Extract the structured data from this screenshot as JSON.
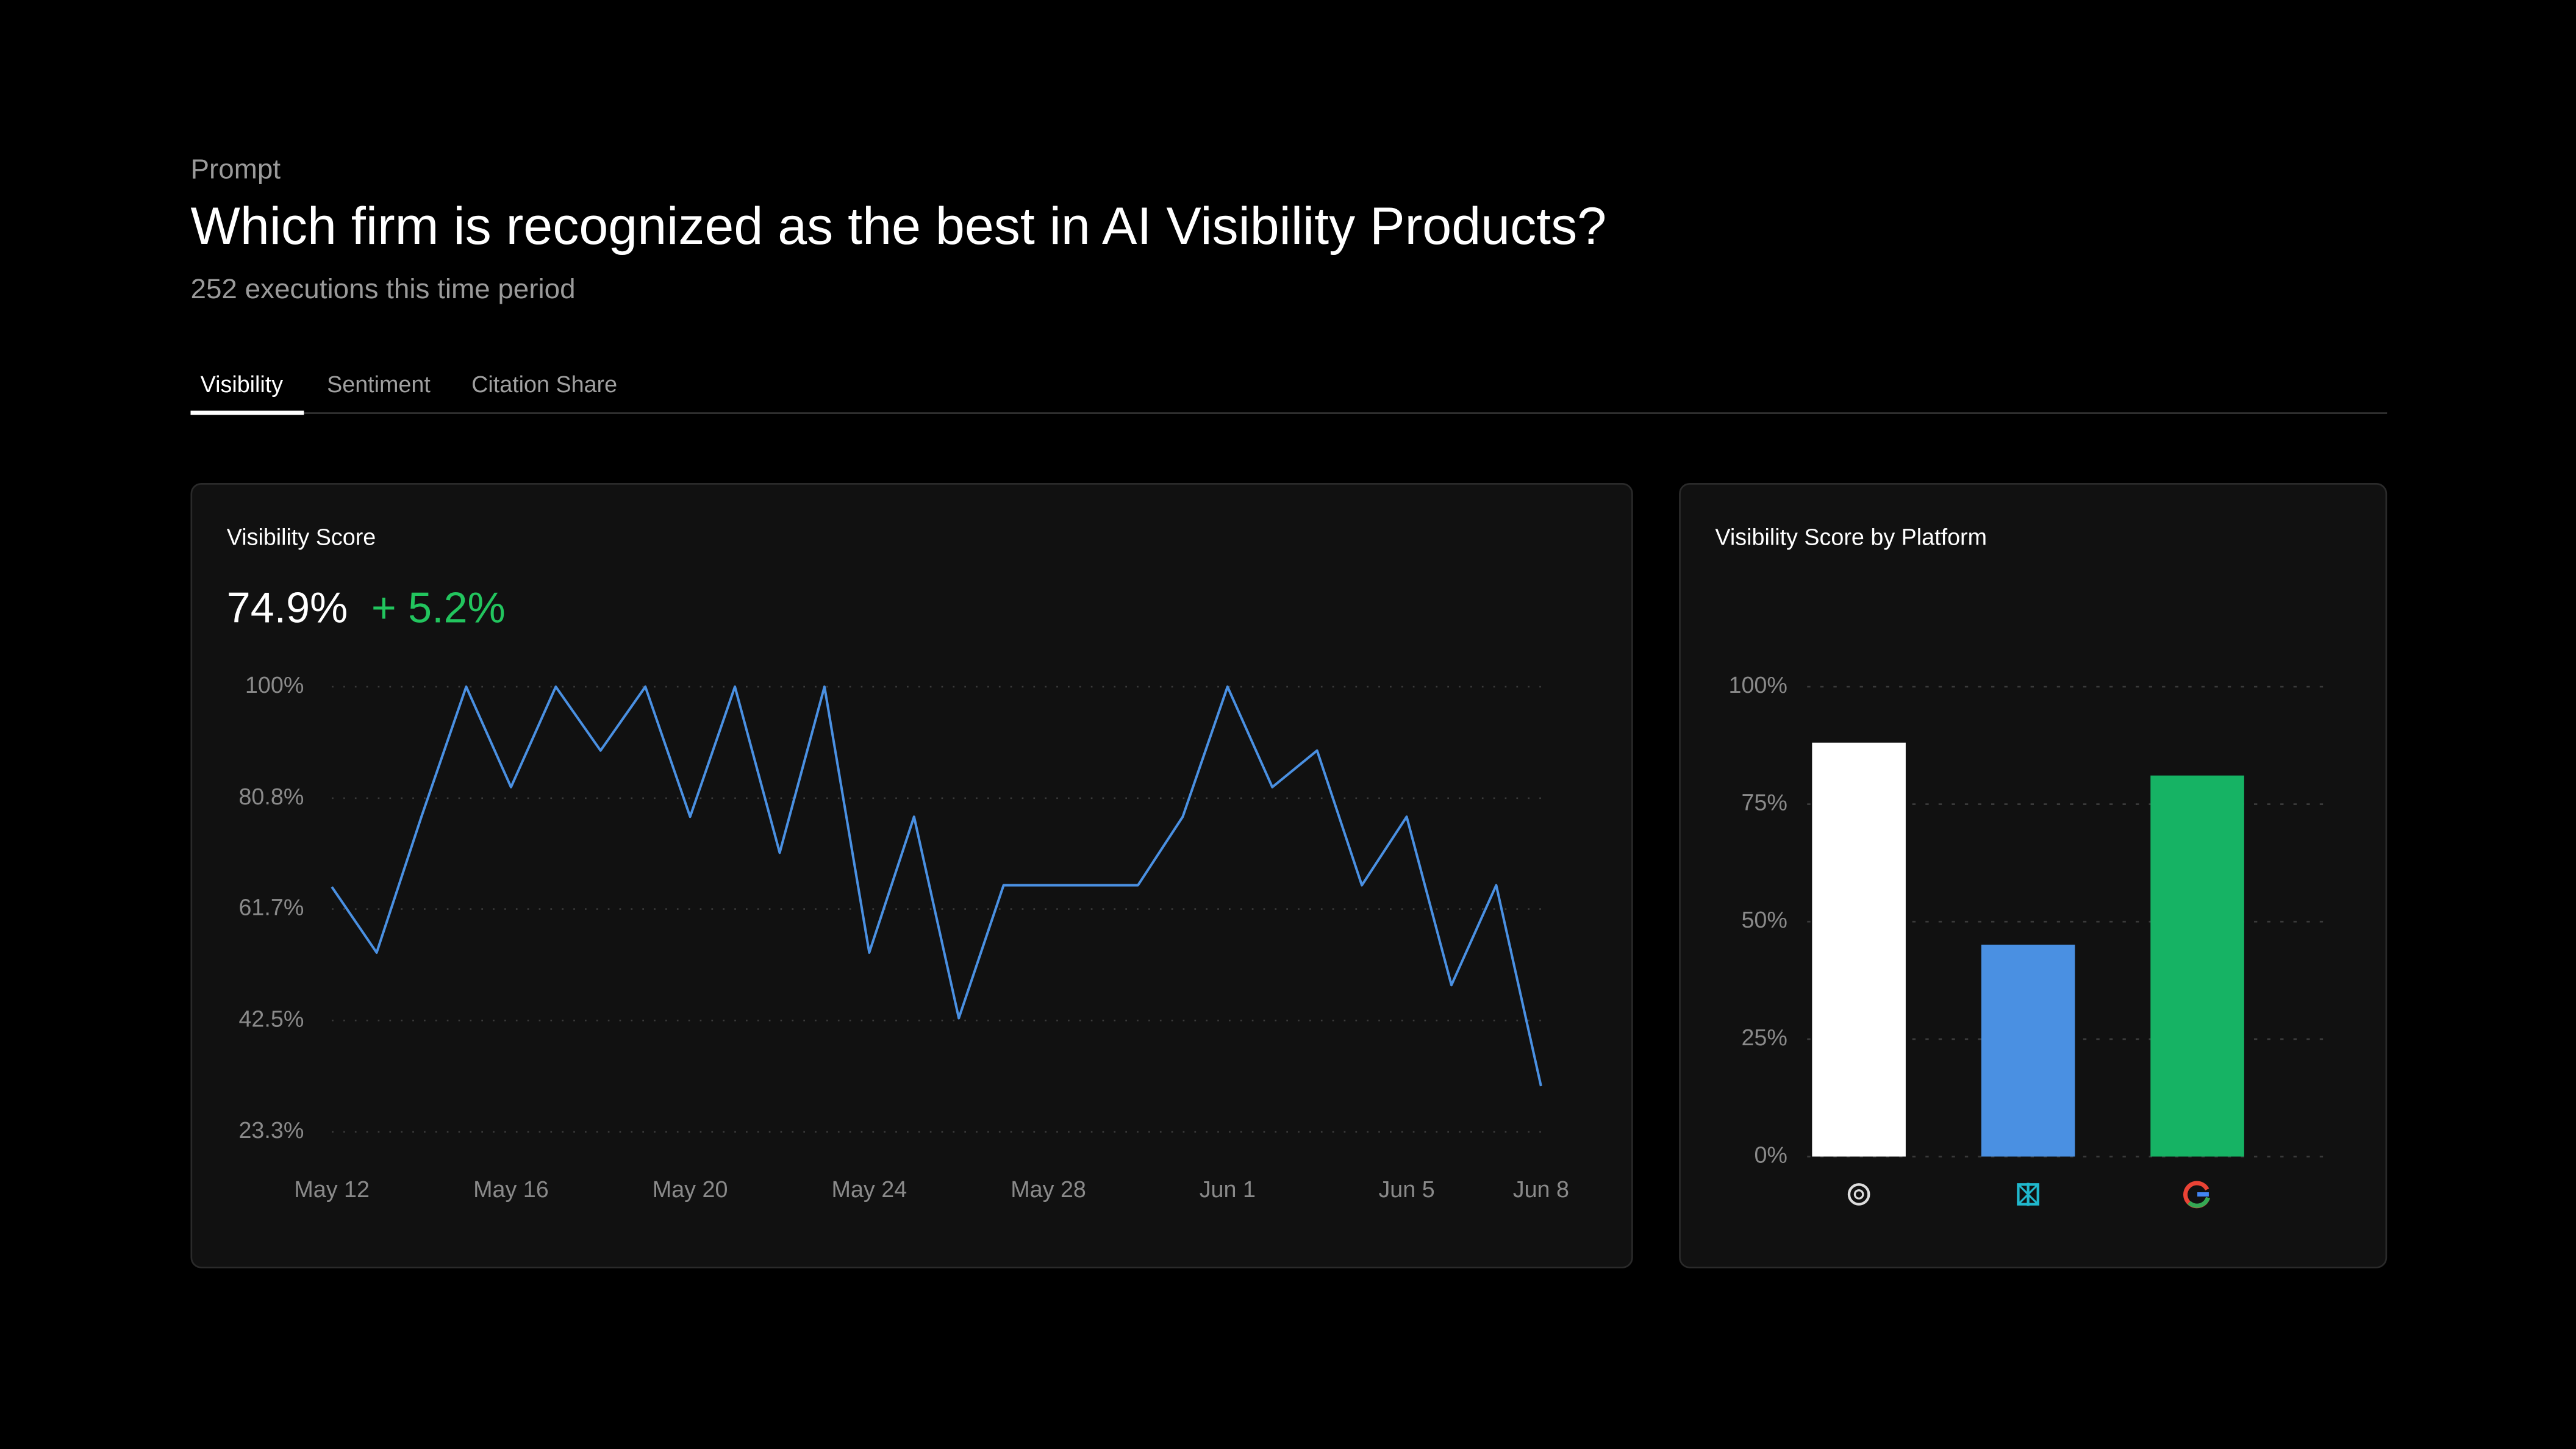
{
  "header": {
    "eyebrow": "Prompt",
    "title": "Which firm is recognized as the best in AI Visibility Products?",
    "subtitle": "252 executions this time period"
  },
  "tabs": [
    "Visibility",
    "Sentiment",
    "Citation Share"
  ],
  "chart_data": [
    {
      "type": "line",
      "title": "Visibility Score",
      "metric": "74.9%",
      "change": "+ 5.2%",
      "categories": [
        "May 12",
        null,
        null,
        null,
        "May 16",
        null,
        null,
        null,
        "May 20",
        null,
        null,
        null,
        "May 24",
        null,
        null,
        null,
        "May 28",
        null,
        null,
        null,
        "Jun 1",
        null,
        null,
        null,
        "Jun 5",
        null,
        null,
        "Jun 8"
      ],
      "series": [
        {
          "name": "Visibility Score",
          "color": "#4a90e2",
          "values": [
            65.5,
            54.2,
            77.6,
            100,
            82.7,
            100,
            89,
            100,
            77.6,
            100,
            71.4,
            100,
            54.2,
            77.6,
            42.9,
            65.8,
            65.8,
            65.8,
            65.8,
            77.6,
            100,
            82.7,
            89,
            65.8,
            77.6,
            48.6,
            65.8,
            31.2
          ]
        }
      ],
      "ylim": [
        23.3,
        100
      ],
      "yticks": [
        {
          "value": 23.3,
          "label": "23.3%"
        },
        {
          "value": 42.5,
          "label": "42.5%"
        },
        {
          "value": 61.7,
          "label": "61.7%"
        },
        {
          "value": 80.8,
          "label": "80.8%"
        },
        {
          "value": 100,
          "label": "100%"
        }
      ],
      "grid": true
    },
    {
      "type": "bar",
      "title": "Visibility Score by Platform",
      "categories": [
        null,
        null,
        null
      ],
      "values": [
        88.1,
        45.1,
        81.1
      ],
      "colors": [
        "#ffffff",
        "#4a90e2",
        "#16b364"
      ],
      "ylim": [
        0,
        100
      ],
      "yticks": [
        {
          "value": 0,
          "label": "0%"
        },
        {
          "value": 25,
          "label": "25%"
        },
        {
          "value": 50,
          "label": "50%"
        },
        {
          "value": 75,
          "label": "75%"
        },
        {
          "value": 100,
          "label": "100%"
        }
      ],
      "grid": true
    }
  ]
}
